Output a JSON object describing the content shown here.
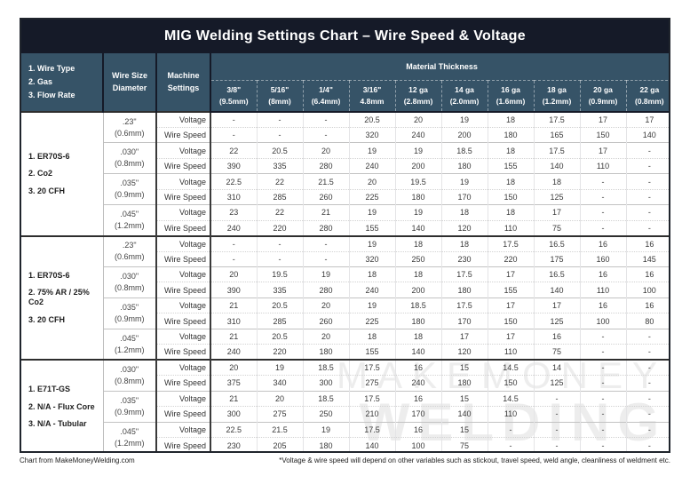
{
  "chart_data": {
    "type": "table",
    "title": "MIG Welding Settings Chart – Wire Speed & Voltage",
    "column_group_header": "Material Thickness",
    "columns": [
      {
        "label": "3/8\"",
        "sub": "(9.5mm)"
      },
      {
        "label": "5/16\"",
        "sub": "(8mm)"
      },
      {
        "label": "1/4\"",
        "sub": "(6.4mm)"
      },
      {
        "label": "3/16\"",
        "sub": "4.8mm"
      },
      {
        "label": "12 ga",
        "sub": "(2.8mm)"
      },
      {
        "label": "14 ga",
        "sub": "(2.0mm)"
      },
      {
        "label": "16 ga",
        "sub": "(1.6mm)"
      },
      {
        "label": "18 ga",
        "sub": "(1.2mm)"
      },
      {
        "label": "20 ga",
        "sub": "(0.9mm)"
      },
      {
        "label": "22 ga",
        "sub": "(0.8mm)"
      }
    ],
    "row_settings": [
      "Voltage",
      "Wire Speed"
    ],
    "groups": [
      {
        "info": [
          "1. ER70S-6",
          "2. Co2",
          "3. 20 CFH"
        ],
        "wire_sizes": [
          {
            "size": ".23\"",
            "mm": "(0.6mm)",
            "voltage": [
              "-",
              "-",
              "-",
              "20.5",
              "20",
              "19",
              "18",
              "17.5",
              "17",
              "17"
            ],
            "wire_speed": [
              "-",
              "-",
              "-",
              "320",
              "240",
              "200",
              "180",
              "165",
              "150",
              "140"
            ]
          },
          {
            "size": ".030\"",
            "mm": "(0.8mm)",
            "voltage": [
              "22",
              "20.5",
              "20",
              "19",
              "19",
              "18.5",
              "18",
              "17.5",
              "17",
              "-"
            ],
            "wire_speed": [
              "390",
              "335",
              "280",
              "240",
              "200",
              "180",
              "155",
              "140",
              "110",
              "-"
            ]
          },
          {
            "size": ".035\"",
            "mm": "(0.9mm)",
            "voltage": [
              "22.5",
              "22",
              "21.5",
              "20",
              "19.5",
              "19",
              "18",
              "18",
              "-",
              "-"
            ],
            "wire_speed": [
              "310",
              "285",
              "260",
              "225",
              "180",
              "170",
              "150",
              "125",
              "-",
              "-"
            ]
          },
          {
            "size": ".045\"",
            "mm": "(1.2mm)",
            "voltage": [
              "23",
              "22",
              "21",
              "19",
              "19",
              "18",
              "18",
              "17",
              "-",
              "-"
            ],
            "wire_speed": [
              "240",
              "220",
              "280",
              "155",
              "140",
              "120",
              "110",
              "75",
              "-",
              "-"
            ]
          }
        ]
      },
      {
        "info": [
          "1. ER70S-6",
          "2. 75% AR / 25% Co2",
          "3. 20 CFH"
        ],
        "wire_sizes": [
          {
            "size": ".23\"",
            "mm": "(0.6mm)",
            "voltage": [
              "-",
              "-",
              "-",
              "19",
              "18",
              "18",
              "17.5",
              "16.5",
              "16",
              "16"
            ],
            "wire_speed": [
              "-",
              "-",
              "-",
              "320",
              "250",
              "230",
              "220",
              "175",
              "160",
              "145"
            ]
          },
          {
            "size": ".030\"",
            "mm": "(0.8mm)",
            "voltage": [
              "20",
              "19.5",
              "19",
              "18",
              "18",
              "17.5",
              "17",
              "16.5",
              "16",
              "16"
            ],
            "wire_speed": [
              "390",
              "335",
              "280",
              "240",
              "200",
              "180",
              "155",
              "140",
              "110",
              "100"
            ]
          },
          {
            "size": ".035\"",
            "mm": "(0.9mm)",
            "voltage": [
              "21",
              "20.5",
              "20",
              "19",
              "18.5",
              "17.5",
              "17",
              "17",
              "16",
              "16"
            ],
            "wire_speed": [
              "310",
              "285",
              "260",
              "225",
              "180",
              "170",
              "150",
              "125",
              "100",
              "80"
            ]
          },
          {
            "size": ".045\"",
            "mm": "(1.2mm)",
            "voltage": [
              "21",
              "20.5",
              "20",
              "18",
              "18",
              "17",
              "17",
              "16",
              "-",
              "-"
            ],
            "wire_speed": [
              "240",
              "220",
              "180",
              "155",
              "140",
              "120",
              "110",
              "75",
              "-",
              "-"
            ]
          }
        ]
      },
      {
        "info": [
          "1. E71T-GS",
          "2. N/A - Flux Core",
          "3. N/A - Tubular"
        ],
        "wire_sizes": [
          {
            "size": ".030\"",
            "mm": "(0.8mm)",
            "voltage": [
              "20",
              "19",
              "18.5",
              "17.5",
              "16",
              "15",
              "14.5",
              "14",
              "-",
              "-"
            ],
            "wire_speed": [
              "375",
              "340",
              "300",
              "275",
              "240",
              "180",
              "150",
              "125",
              "-",
              "-"
            ]
          },
          {
            "size": ".035\"",
            "mm": "(0.9mm)",
            "voltage": [
              "21",
              "20",
              "18.5",
              "17.5",
              "16",
              "15",
              "14.5",
              "-",
              "-",
              "-"
            ],
            "wire_speed": [
              "300",
              "275",
              "250",
              "210",
              "170",
              "140",
              "110",
              "-",
              "-",
              "-"
            ]
          },
          {
            "size": ".045\"",
            "mm": "(1.2mm)",
            "voltage": [
              "22.5",
              "21.5",
              "19",
              "17.5",
              "16",
              "15",
              "-",
              "-",
              "-",
              "-"
            ],
            "wire_speed": [
              "230",
              "205",
              "180",
              "140",
              "100",
              "75",
              "-",
              "-",
              "-",
              "-"
            ]
          }
        ]
      }
    ]
  },
  "left_header": {
    "info": [
      "1. Wire Type",
      "2. Gas",
      "3. Flow Rate"
    ],
    "wire_size": [
      "Wire Size",
      "Diameter"
    ],
    "machine": [
      "Machine",
      "Settings"
    ]
  },
  "watermark": {
    "line1": "MAKEMONEY",
    "line2": "WELDING"
  },
  "footer": {
    "left": "Chart from MakeMoneyWelding.com",
    "right": "*Voltage & wire speed will depend on other variables such as stickout, travel speed, weld angle, cleanliness of weldment etc."
  },
  "colors": {
    "title_bg": "#151a28",
    "header_bg": "#365367",
    "header_text": "#ffffff",
    "border_dark": "#2e2e2e",
    "watermark": "#ededed"
  }
}
